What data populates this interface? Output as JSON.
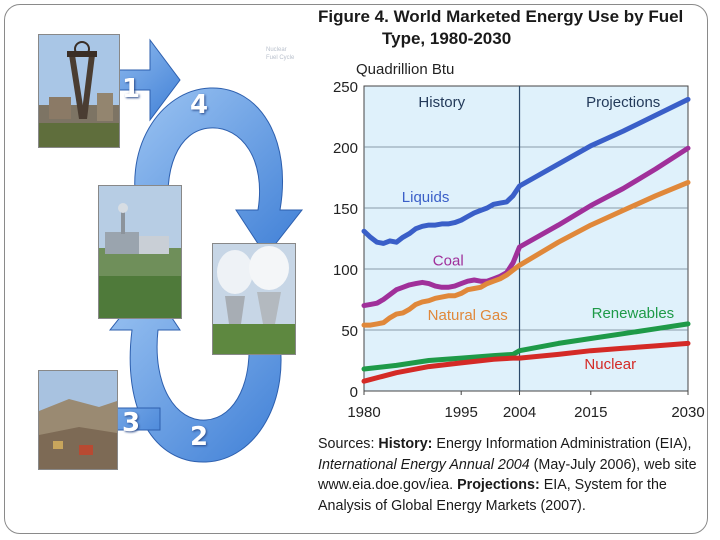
{
  "slide": {
    "steps": [
      "1",
      "4",
      "3",
      "2"
    ],
    "photos": [
      "mine-headframe",
      "power-plant",
      "cooling-towers",
      "quarry"
    ],
    "caption_small": [
      "Nuclear",
      "Fuel Cycle"
    ]
  },
  "figure": {
    "title_line1": "Figure 4.  World Marketed Energy Use by Fuel",
    "title_line2": "Type, 1980-2030"
  },
  "chart_data": {
    "type": "line",
    "title": "Figure 4. World Marketed Energy Use by Fuel Type, 1980-2030",
    "ylabel": "Quadrillion Btu",
    "xlabel": "",
    "xlim": [
      1980,
      2030
    ],
    "ylim": [
      0,
      250
    ],
    "xticks": [
      1980,
      1995,
      2004,
      2015,
      2030
    ],
    "yticks": [
      0,
      50,
      100,
      150,
      200,
      250
    ],
    "regions": [
      {
        "label": "History",
        "from": 1980,
        "to": 2004
      },
      {
        "label": "Projections",
        "from": 2004,
        "to": 2030
      }
    ],
    "divider_x": 2004,
    "background_color": "#dff1fb",
    "series": [
      {
        "name": "Liquids",
        "color": "#3a5fc8",
        "x": [
          1980,
          1981,
          1982,
          1983,
          1984,
          1985,
          1986,
          1987,
          1988,
          1989,
          1990,
          1991,
          1992,
          1993,
          1994,
          1995,
          1996,
          1997,
          1998,
          1999,
          2000,
          2001,
          2002,
          2003,
          2004,
          2010,
          2015,
          2020,
          2025,
          2030
        ],
        "y": [
          131,
          126,
          122,
          121,
          123,
          122,
          126,
          129,
          133,
          135,
          136,
          136,
          137,
          137,
          138,
          140,
          143,
          146,
          148,
          150,
          153,
          154,
          155,
          160,
          168,
          186,
          201,
          213,
          226,
          239
        ]
      },
      {
        "name": "Coal",
        "color": "#a0309a",
        "x": [
          1980,
          1981,
          1982,
          1983,
          1984,
          1985,
          1986,
          1987,
          1988,
          1989,
          1990,
          1991,
          1992,
          1993,
          1994,
          1995,
          1996,
          1997,
          1998,
          1999,
          2000,
          2001,
          2002,
          2003,
          2004,
          2010,
          2015,
          2020,
          2025,
          2030
        ],
        "y": [
          70,
          71,
          72,
          75,
          79,
          83,
          85,
          87,
          88,
          89,
          88,
          86,
          85,
          85,
          86,
          88,
          90,
          91,
          90,
          90,
          92,
          94,
          97,
          105,
          118,
          136,
          152,
          166,
          182,
          199
        ]
      },
      {
        "name": "Natural Gas",
        "color": "#e0883a",
        "x": [
          1980,
          1981,
          1982,
          1983,
          1984,
          1985,
          1986,
          1987,
          1988,
          1989,
          1990,
          1991,
          1992,
          1993,
          1994,
          1995,
          1996,
          1997,
          1998,
          1999,
          2000,
          2001,
          2002,
          2003,
          2004,
          2010,
          2015,
          2020,
          2025,
          2030
        ],
        "y": [
          54,
          54,
          55,
          56,
          60,
          63,
          64,
          67,
          71,
          73,
          74,
          76,
          77,
          78,
          78,
          80,
          83,
          84,
          85,
          88,
          90,
          92,
          95,
          99,
          103,
          122,
          136,
          148,
          160,
          171
        ]
      },
      {
        "name": "Renewables",
        "color": "#1e9a48",
        "x": [
          1980,
          1985,
          1990,
          1995,
          2000,
          2003,
          2004,
          2010,
          2015,
          2020,
          2025,
          2030
        ],
        "y": [
          18,
          21,
          25,
          27,
          29,
          30,
          33,
          39,
          43,
          47,
          51,
          55
        ]
      },
      {
        "name": "Nuclear",
        "color": "#d42a26",
        "x": [
          1980,
          1985,
          1990,
          1995,
          2000,
          2003,
          2004,
          2010,
          2015,
          2020,
          2025,
          2030
        ],
        "y": [
          8,
          15,
          20,
          23,
          26,
          27,
          27,
          30,
          33,
          35,
          37,
          39
        ]
      }
    ],
    "labels": [
      {
        "text": "Liquids",
        "series": "Liquids"
      },
      {
        "text": "Coal",
        "series": "Coal"
      },
      {
        "text": "Natural Gas",
        "series": "Natural Gas"
      },
      {
        "text": "Renewables",
        "series": "Renewables"
      },
      {
        "text": "Nuclear",
        "series": "Nuclear"
      }
    ]
  },
  "sources": {
    "prefix": "Sources: ",
    "history_label": "History:",
    "history_text": " Energy Information Administration (EIA), ",
    "report_title": "International Energy Annual 2004",
    "report_text": " (May-July 2006), web site www.eia.doe.gov/iea. ",
    "projections_label": "Projections:",
    "projections_text": " EIA, System for the Analysis of Global Energy Markets (2007)."
  }
}
